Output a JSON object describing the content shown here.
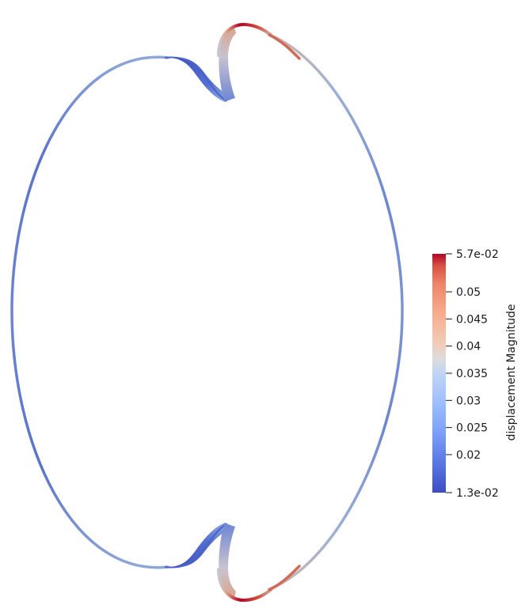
{
  "colorbar": {
    "title": "displacement Magnitude",
    "colormap": "cool-to-warm",
    "range": [
      0.013,
      0.057
    ],
    "max_label": "5.7e-02",
    "min_label": "1.3e-02",
    "ticks": [
      {
        "value": 0.05,
        "label": "0.05"
      },
      {
        "value": 0.045,
        "label": "0.045"
      },
      {
        "value": 0.04,
        "label": "0.04"
      },
      {
        "value": 0.035,
        "label": "0.035"
      },
      {
        "value": 0.03,
        "label": "0.03"
      },
      {
        "value": 0.025,
        "label": "0.025"
      },
      {
        "value": 0.02,
        "label": "0.02"
      }
    ],
    "colors": {
      "low": "#3b4cc0",
      "mid": "#dddddd",
      "high": "#b40426"
    }
  }
}
